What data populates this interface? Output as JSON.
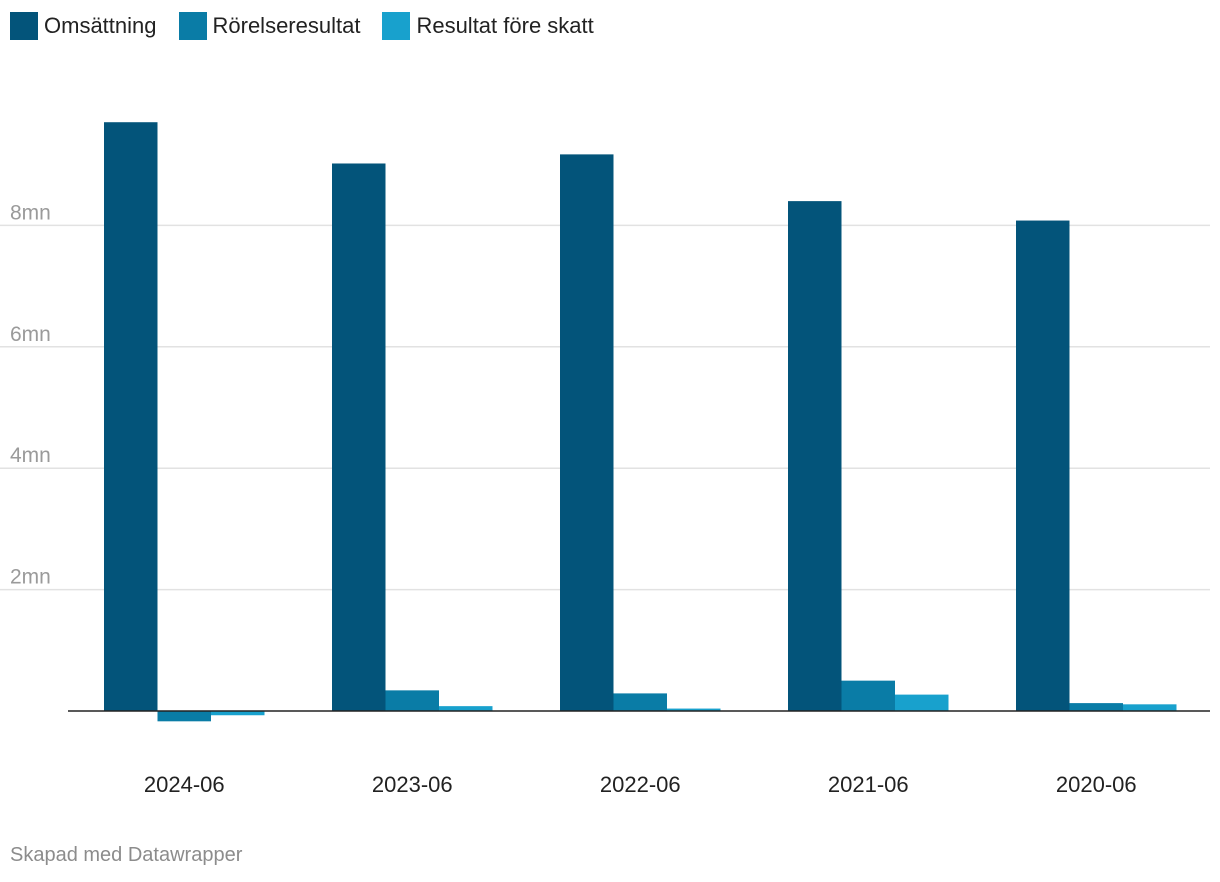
{
  "chart_data": {
    "type": "bar",
    "categories": [
      "2024-06",
      "2023-06",
      "2022-06",
      "2021-06",
      "2020-06"
    ],
    "series": [
      {
        "name": "Omsättning",
        "color": "#03547a",
        "values": [
          9.7,
          9.02,
          9.17,
          8.4,
          8.08
        ]
      },
      {
        "name": "Rörelseresultat",
        "color": "#0a7ca6",
        "values": [
          -0.17,
          0.34,
          0.29,
          0.5,
          0.13
        ]
      },
      {
        "name": "Resultat före skatt",
        "color": "#18a1cd",
        "values": [
          -0.07,
          0.08,
          0.04,
          0.27,
          0.11
        ]
      }
    ],
    "y_ticks": [
      2,
      4,
      6,
      8
    ],
    "y_tick_labels": [
      "2mn",
      "4mn",
      "6mn",
      "8mn"
    ],
    "ylim": [
      -0.3,
      10
    ],
    "grid": true,
    "legend": "top-left"
  },
  "footer": {
    "credit": "Skapad med Datawrapper"
  }
}
